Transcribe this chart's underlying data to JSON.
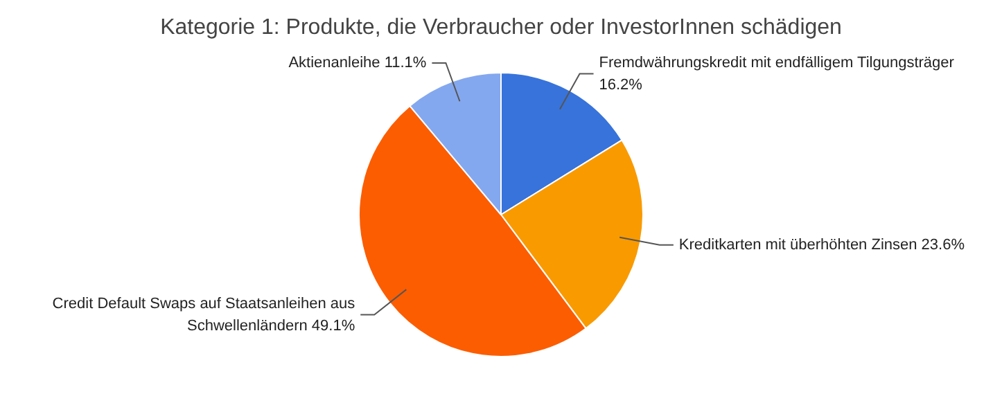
{
  "chart_data": {
    "type": "pie",
    "title": "Kategorie 1: Produkte, die Verbraucher oder InvestorInnen schädigen",
    "categories": [
      "Fremdwährungskredit mit endfälligem Tilgungsträger",
      "Kreditkarten mit überhöhten Zinsen",
      "Credit Default Swaps auf Staatsanleihen aus Schwellenländern",
      "Aktienanleihe"
    ],
    "values": [
      16.2,
      23.6,
      49.1,
      11.1
    ],
    "value_labels": [
      "16.2%",
      "23.6%",
      "49.1%",
      "11.1%"
    ],
    "colors": [
      "#3773db",
      "#f99a00",
      "#fc5d00",
      "#84a8ef"
    ],
    "legend": false
  }
}
